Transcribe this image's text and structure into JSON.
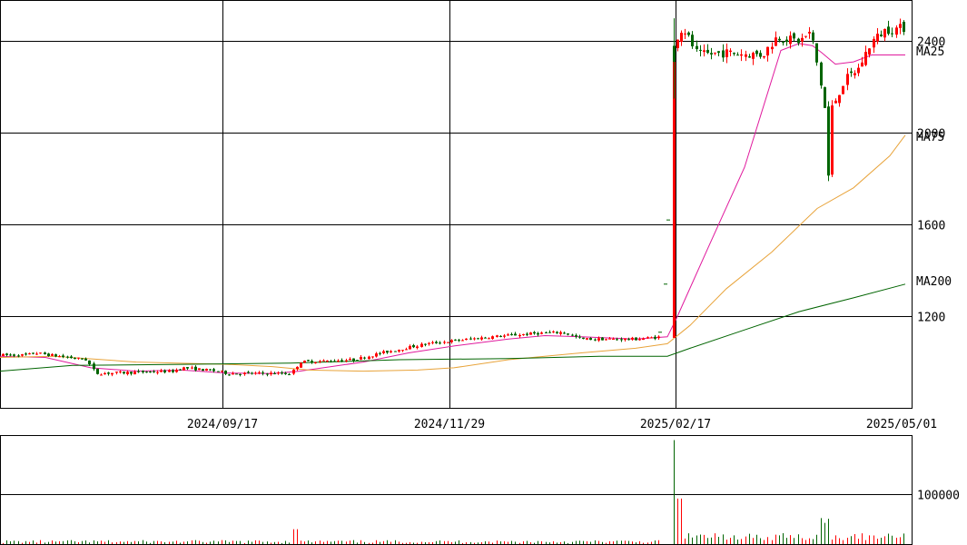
{
  "chart_data": {
    "type": "candlestick",
    "price": {
      "y_ticks": [
        "2400",
        "2000",
        "1600",
        "1200"
      ],
      "y_tick_values": [
        2400,
        2000,
        1600,
        1200
      ],
      "ylim": [
        800,
        2580
      ],
      "ma_labels": {
        "ma25": "MA25",
        "ma75": "MA75",
        "ma200": "MA200"
      }
    },
    "x_ticks": [
      "2024/09/17",
      "2024/11/29",
      "2025/02/17",
      "2025/05/01"
    ],
    "volume": {
      "y_ticks": [
        "100000"
      ],
      "y_tick_values": [
        100000
      ],
      "ylim": [
        0,
        220000
      ]
    },
    "grid": true,
    "colors": {
      "up": "#ff0000",
      "down": "#006400",
      "ma25": "#e0199d",
      "ma75": "#e8a33a",
      "ma200": "#006400",
      "grid": "#000000"
    }
  }
}
